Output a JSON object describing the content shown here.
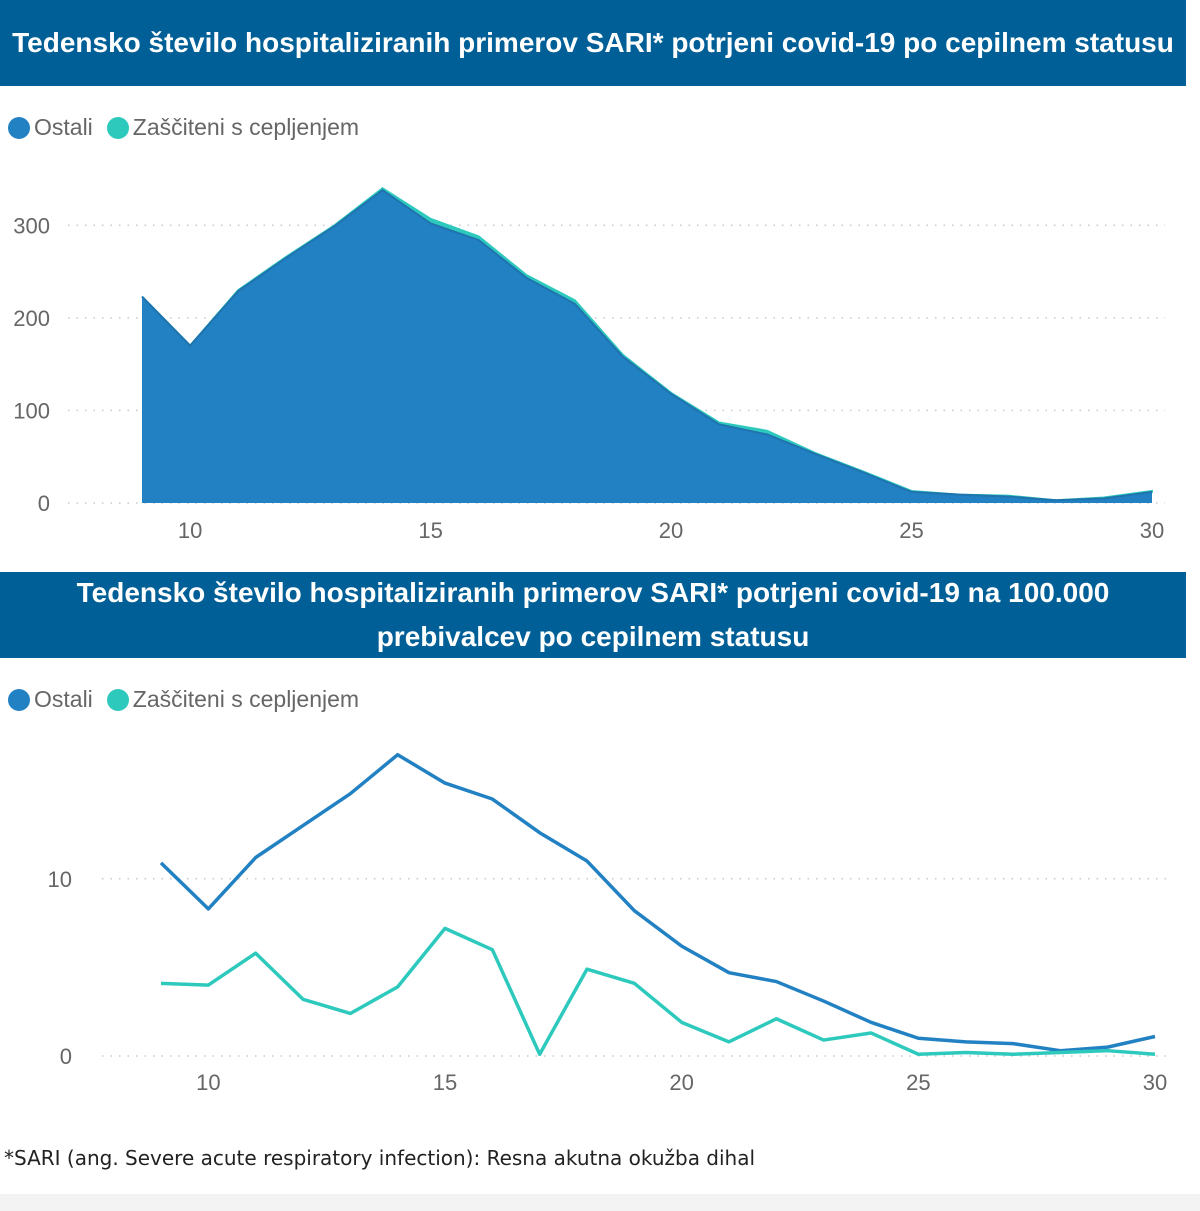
{
  "colors": {
    "ostali": "#2281c3",
    "zasciteni": "#2ec9bd",
    "title_bg": "#005f96"
  },
  "footnote": "*SARI (ang. Severe acute respiratory infection): Resna akutna okužba dihal",
  "chart_data": [
    {
      "type": "area",
      "title": "Tedensko število hospitaliziranih primerov SARI* potrjeni covid-19 po cepilnem statusu",
      "stacked": true,
      "legend": {
        "position": "top-left",
        "entries": [
          "Ostali",
          "Zaščiteni s cepljenjem"
        ]
      },
      "x": [
        9,
        10,
        11,
        12,
        13,
        14,
        15,
        16,
        17,
        18,
        19,
        20,
        21,
        22,
        23,
        24,
        25,
        26,
        27,
        28,
        29,
        30
      ],
      "series": [
        {
          "name": "Ostali",
          "color": "#2281c3",
          "values": [
            223,
            170,
            229,
            265,
            299,
            338,
            302,
            284,
            243,
            215,
            158,
            118,
            85,
            74,
            53,
            33,
            12,
            9,
            7,
            3,
            5,
            12
          ]
        },
        {
          "name": "Zaščiteni s cepljenjem",
          "color": "#2ec9bd",
          "values": [
            0,
            0,
            1,
            1,
            1,
            2,
            5,
            4,
            3,
            4,
            2,
            1,
            2,
            4,
            1,
            1,
            1,
            0,
            1,
            0,
            1,
            1
          ]
        }
      ],
      "xticks": [
        10,
        15,
        20,
        25,
        30
      ],
      "yticks": [
        0,
        100,
        200,
        300
      ],
      "xlim": [
        9,
        30
      ],
      "ylim": [
        0,
        350
      ],
      "grid": true
    },
    {
      "type": "line",
      "title": "Tedensko število hospitaliziranih primerov SARI* potrjeni covid-19 na 100.000 prebivalcev po cepilnem statusu",
      "legend": {
        "position": "top-left",
        "entries": [
          "Ostali",
          "Zaščiteni s cepljenjem"
        ]
      },
      "x": [
        9,
        10,
        11,
        12,
        13,
        14,
        15,
        16,
        17,
        18,
        19,
        20,
        21,
        22,
        23,
        24,
        25,
        26,
        27,
        28,
        29,
        30
      ],
      "series": [
        {
          "name": "Ostali",
          "color": "#2281c3",
          "values": [
            10.9,
            8.3,
            11.2,
            13.0,
            14.8,
            17.0,
            15.4,
            14.5,
            12.6,
            11.0,
            8.2,
            6.2,
            4.7,
            4.2,
            3.1,
            1.9,
            1.0,
            0.8,
            0.7,
            0.3,
            0.5,
            1.1
          ]
        },
        {
          "name": "Zaščiteni s cepljenjem",
          "color": "#2ec9bd",
          "values": [
            4.1,
            4.0,
            5.8,
            3.2,
            2.4,
            3.9,
            7.2,
            6.0,
            0.1,
            4.9,
            4.1,
            1.9,
            0.8,
            2.1,
            0.9,
            1.3,
            0.1,
            0.2,
            0.1,
            0.2,
            0.3,
            0.1
          ]
        }
      ],
      "xticks": [
        10,
        15,
        20,
        25,
        30
      ],
      "yticks": [
        0,
        10
      ],
      "xlim": [
        9,
        30
      ],
      "ylim": [
        0,
        18
      ],
      "grid": true
    }
  ]
}
